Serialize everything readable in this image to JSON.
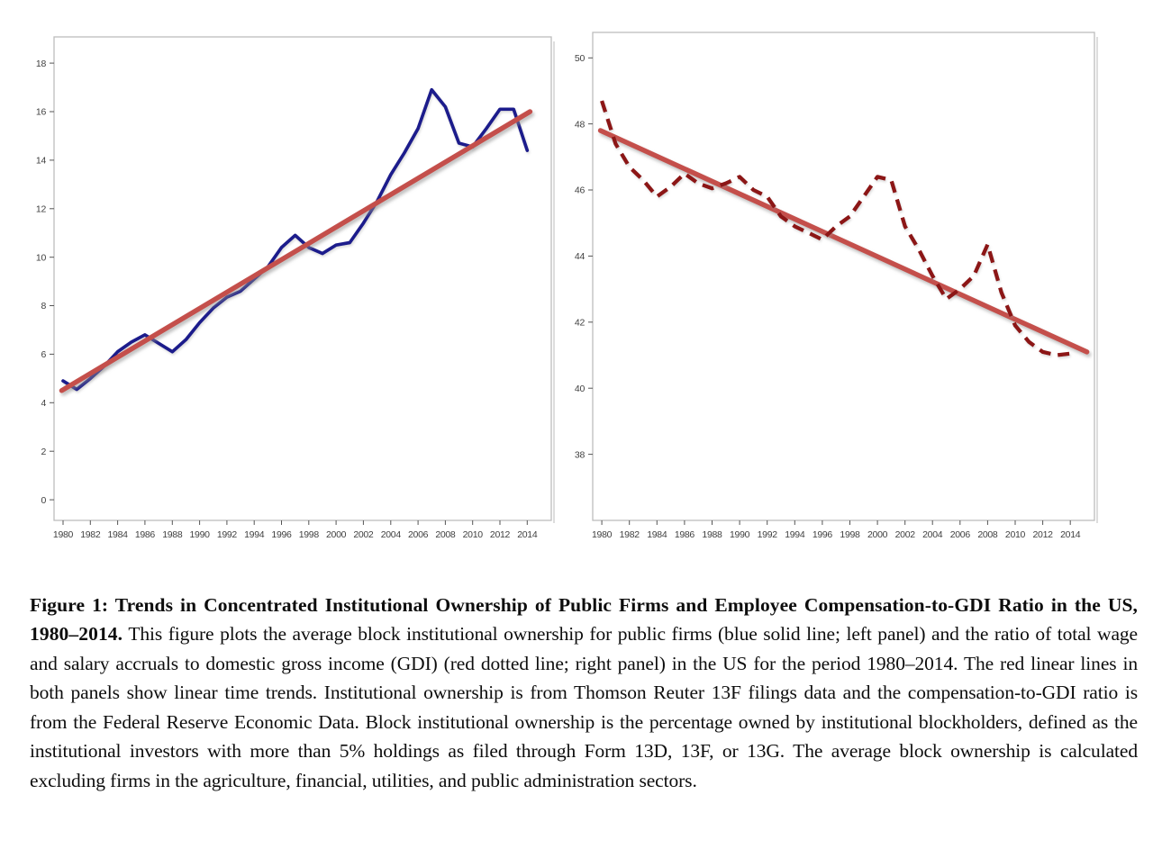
{
  "figure": {
    "caption_bold": "Figure 1: Trends in Concentrated Institutional Ownership of Public Firms and Employee Compensation-to-GDI Ratio in the US, 1980–2014.",
    "caption_text": " This figure plots the average block institutional ownership for public firms (blue solid line; left panel) and the ratio of total wage and salary accruals to domestic gross income (GDI) (red dotted line; right panel) in the US for the period 1980–2014. The red linear lines in both panels show linear time trends. Institutional ownership is from Thomson Reuter 13F filings data and the compensation-to-GDI ratio is from the Federal Reserve Economic Data. Block institutional ownership is the percentage owned by institutional blockholders, defined as the institutional investors with more than 5% holdings as filed through Form 13D, 13F, or 13G. The average block ownership is calculated excluding firms in the agriculture, financial, utilities, and public administration sectors."
  },
  "colors": {
    "ownership_line": "#1e1e8c",
    "gdi_line": "#8c1919",
    "trend_line": "#c4504b",
    "frame": "#bdbdbd",
    "tick_text": "#3f3f3f"
  },
  "chart_data": [
    {
      "type": "line",
      "panel": "left",
      "title": "",
      "xlabel": "",
      "ylabel": "",
      "grid": false,
      "legend": "none",
      "trend_on_top": true,
      "xlim": [
        1979.34,
        2015.76
      ],
      "ylim": [
        -0.85,
        19.08
      ],
      "xticks": [
        1980,
        1982,
        1984,
        1986,
        1988,
        1990,
        1992,
        1994,
        1996,
        1998,
        2000,
        2002,
        2004,
        2006,
        2008,
        2010,
        2012,
        2014
      ],
      "yticks": [
        0,
        2,
        4,
        6,
        8,
        10,
        12,
        14,
        16,
        18
      ],
      "series": [
        {
          "name": "Average block institutional ownership of public firms (%)",
          "style": "solid",
          "color": "#1e1e8c",
          "x": [
            1980,
            1981,
            1982,
            1983,
            1984,
            1985,
            1986,
            1987,
            1988,
            1989,
            1990,
            1991,
            1992,
            1993,
            1994,
            1995,
            1996,
            1997,
            1998,
            1999,
            2000,
            2001,
            2002,
            2003,
            2004,
            2005,
            2006,
            2007,
            2008,
            2009,
            2010,
            2011,
            2012,
            2013,
            2014
          ],
          "values": [
            4.9,
            4.55,
            5.0,
            5.5,
            6.1,
            6.5,
            6.8,
            6.45,
            6.1,
            6.6,
            7.3,
            7.9,
            8.35,
            8.6,
            9.1,
            9.6,
            10.4,
            10.9,
            10.4,
            10.15,
            10.5,
            10.6,
            11.4,
            12.3,
            13.4,
            14.3,
            15.3,
            16.9,
            16.2,
            14.7,
            14.55,
            15.3,
            16.1,
            16.1,
            14.4
          ]
        },
        {
          "name": "Linear time trend",
          "style": "trend",
          "color": "#c4504b",
          "x": [
            1979.9,
            2014.2
          ],
          "values": [
            4.5,
            16.0
          ]
        }
      ]
    },
    {
      "type": "line",
      "panel": "right",
      "title": "",
      "xlabel": "",
      "ylabel": "",
      "grid": false,
      "legend": "none",
      "trend_on_top": false,
      "xlim": [
        1979.34,
        2015.75
      ],
      "ylim": [
        36.0,
        50.77
      ],
      "xticks": [
        1980,
        1982,
        1984,
        1986,
        1988,
        1990,
        1992,
        1994,
        1996,
        1998,
        2000,
        2002,
        2004,
        2006,
        2008,
        2010,
        2012,
        2014
      ],
      "yticks": [
        38,
        40,
        42,
        44,
        46,
        48,
        50
      ],
      "series": [
        {
          "name": "Compensation-to-GDI ratio (%)",
          "style": "dashed",
          "color": "#8c1919",
          "x": [
            1980,
            1981,
            1982,
            1983,
            1984,
            1985,
            1986,
            1987,
            1988,
            1989,
            1990,
            1991,
            1992,
            1993,
            1994,
            1995,
            1996,
            1997,
            1998,
            1999,
            2000,
            2001,
            2002,
            2003,
            2004,
            2005,
            2006,
            2007,
            2008,
            2009,
            2010,
            2011,
            2012,
            2013,
            2014
          ],
          "values": [
            48.7,
            47.4,
            46.7,
            46.3,
            45.8,
            46.1,
            46.5,
            46.2,
            46.05,
            46.2,
            46.4,
            46.0,
            45.8,
            45.2,
            44.9,
            44.7,
            44.5,
            44.9,
            45.2,
            45.8,
            46.4,
            46.3,
            44.9,
            44.2,
            43.4,
            42.7,
            43.0,
            43.4,
            44.35,
            42.9,
            41.9,
            41.4,
            41.1,
            41.0,
            41.05
          ]
        },
        {
          "name": "Linear time trend",
          "style": "trend",
          "color": "#c4504b",
          "x": [
            1979.9,
            2015.2
          ],
          "values": [
            47.8,
            41.1
          ]
        }
      ]
    }
  ]
}
